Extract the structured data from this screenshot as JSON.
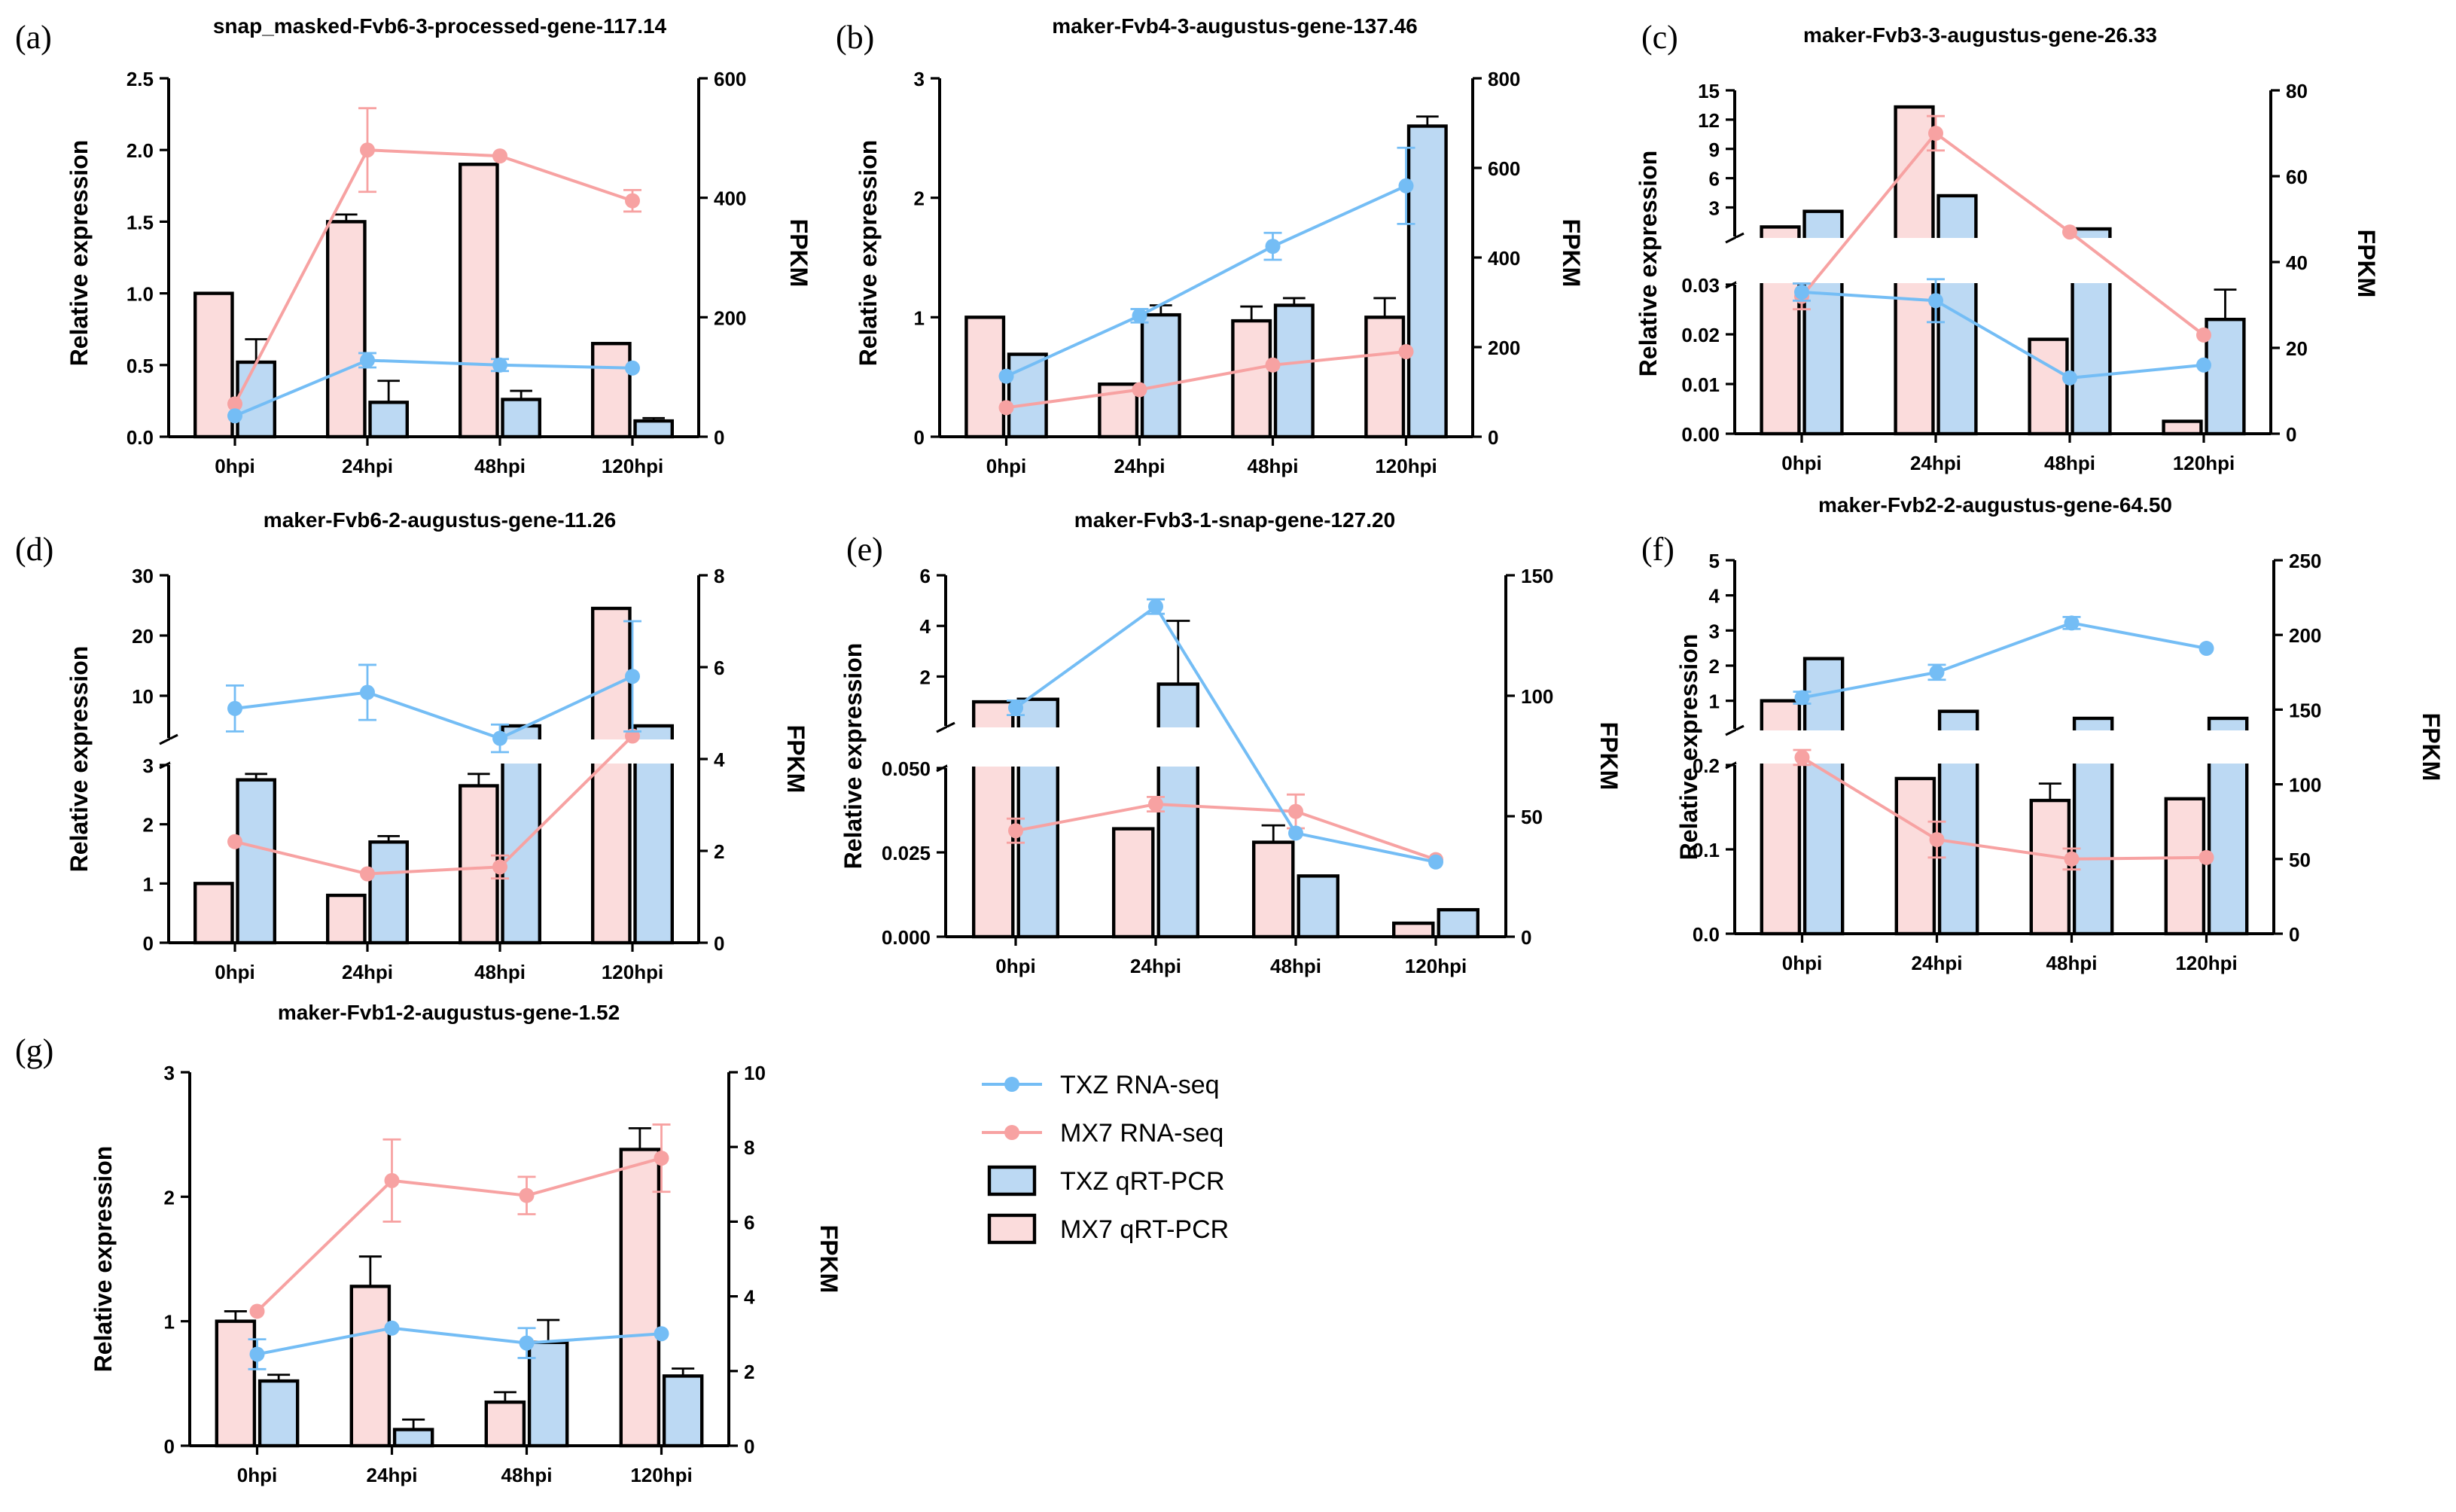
{
  "legend": [
    {
      "label": "TXZ RNA-seq",
      "kind": "line",
      "color": "#74bdf5"
    },
    {
      "label": "MX7 RNA-seq",
      "kind": "line",
      "color": "#f7a2a2"
    },
    {
      "label": "TXZ qRT-PCR",
      "kind": "bar",
      "color": "#bcd9f3"
    },
    {
      "label": "MX7 qRT-PCR",
      "kind": "bar",
      "color": "#fbdcdc"
    }
  ],
  "colors": {
    "txz_line": "#74bdf5",
    "mx7_line": "#f7a2a2",
    "txz_bar": "#bcd9f3",
    "mx7_bar": "#fbdcdc",
    "outline": "#000000"
  },
  "chart_data": [
    {
      "panel": "(a)",
      "type": "bar",
      "title": "snap_masked-Fvb6-3-processed-gene-117.14",
      "categories": [
        "0hpi",
        "24hpi",
        "48hpi",
        "120hpi"
      ],
      "ylabel": "Relative expression",
      "y2label": "FPKM",
      "ylim": [
        0,
        2.5
      ],
      "yticks": [
        "0.0",
        "0.5",
        "1.0",
        "1.5",
        "2.0",
        "2.5"
      ],
      "y2lim": [
        0,
        600
      ],
      "y2ticks": [
        "0",
        "200",
        "400",
        "600"
      ],
      "series": [
        {
          "name": "MX7 qRT-PCR",
          "values": [
            1.0,
            1.5,
            1.9,
            0.65
          ],
          "err": [
            0.0,
            0.05,
            0.0,
            0.0
          ]
        },
        {
          "name": "TXZ qRT-PCR",
          "values": [
            0.52,
            0.24,
            0.26,
            0.11
          ],
          "err": [
            0.16,
            0.15,
            0.06,
            0.02
          ]
        },
        {
          "name": "MX7 RNA-seq",
          "values": [
            55,
            480,
            470,
            395
          ],
          "err": [
            0,
            70,
            0,
            18
          ]
        },
        {
          "name": "TXZ RNA-seq",
          "values": [
            35,
            128,
            120,
            115
          ],
          "err": [
            0,
            12,
            10,
            0
          ]
        }
      ]
    },
    {
      "panel": "(b)",
      "type": "bar",
      "title": "maker-Fvb4-3-augustus-gene-137.46",
      "categories": [
        "0hpi",
        "24hpi",
        "48hpi",
        "120hpi"
      ],
      "ylabel": "Relative expression",
      "y2label": "FPKM",
      "ylim": [
        0,
        3
      ],
      "yticks": [
        "0",
        "1",
        "2",
        "3"
      ],
      "y2lim": [
        0,
        800
      ],
      "y2ticks": [
        "0",
        "200",
        "400",
        "600",
        "800"
      ],
      "series": [
        {
          "name": "MX7 qRT-PCR",
          "values": [
            1.0,
            0.44,
            0.97,
            1.0
          ],
          "err": [
            0.0,
            0.0,
            0.12,
            0.16
          ]
        },
        {
          "name": "TXZ qRT-PCR",
          "values": [
            0.69,
            1.02,
            1.1,
            2.6
          ],
          "err": [
            0.0,
            0.08,
            0.06,
            0.08
          ]
        },
        {
          "name": "MX7 RNA-seq",
          "values": [
            65,
            105,
            160,
            190
          ],
          "err": [
            0,
            0,
            0,
            0
          ]
        },
        {
          "name": "TXZ RNA-seq",
          "values": [
            135,
            270,
            425,
            560
          ],
          "err": [
            0,
            15,
            30,
            85
          ]
        }
      ]
    },
    {
      "panel": "(c)",
      "type": "bar",
      "title": "maker-Fvb3-3-augustus-gene-26.33",
      "categories": [
        "0hpi",
        "24hpi",
        "48hpi",
        "120hpi"
      ],
      "ylabel": "Relative expression",
      "y2label": "FPKM",
      "axis_break": true,
      "ylim_lower": [
        0,
        0.03
      ],
      "yticks_lower": [
        "0.00",
        "0.01",
        "0.02",
        "0.03"
      ],
      "ylim_upper": [
        0,
        15
      ],
      "yticks_upper": [
        "3",
        "6",
        "9",
        "12",
        "15"
      ],
      "y2lim": [
        0,
        80
      ],
      "y2ticks": [
        "0",
        "20",
        "40",
        "60",
        "80"
      ],
      "series": [
        {
          "name": "MX7 qRT-PCR",
          "values": [
            1.0,
            13.3,
            0.019,
            0.0025
          ],
          "err": [
            0,
            0,
            0,
            0
          ]
        },
        {
          "name": "TXZ qRT-PCR",
          "values": [
            2.6,
            4.2,
            0.8,
            0.023
          ],
          "err": [
            0,
            0,
            0,
            0.006
          ]
        },
        {
          "name": "MX7 RNA-seq",
          "values": [
            32,
            70,
            47,
            23
          ],
          "err": [
            3,
            4,
            0,
            0
          ]
        },
        {
          "name": "TXZ RNA-seq",
          "values": [
            33,
            31,
            13,
            16
          ],
          "err": [
            2,
            5,
            0,
            0
          ]
        }
      ]
    },
    {
      "panel": "(d)",
      "type": "bar",
      "title": "maker-Fvb6-2-augustus-gene-11.26",
      "categories": [
        "0hpi",
        "24hpi",
        "48hpi",
        "120hpi"
      ],
      "ylabel": "Relative expression",
      "y2label": "FPKM",
      "axis_break": true,
      "ylim_lower": [
        0,
        3
      ],
      "yticks_lower": [
        "0",
        "1",
        "2",
        "3"
      ],
      "ylim_upper": [
        3,
        30
      ],
      "yticks_upper": [
        "10",
        "20",
        "30"
      ],
      "y2lim": [
        0,
        8
      ],
      "y2ticks": [
        "0",
        "2",
        "4",
        "6",
        "8"
      ],
      "series": [
        {
          "name": "MX7 qRT-PCR",
          "values": [
            1.0,
            0.8,
            2.65,
            24.5
          ],
          "err": [
            0,
            0,
            0.2,
            0
          ]
        },
        {
          "name": "TXZ qRT-PCR",
          "values": [
            2.75,
            1.7,
            5.0,
            5.0
          ],
          "err": [
            0.1,
            0.1,
            0,
            0
          ]
        },
        {
          "name": "MX7 RNA-seq",
          "values": [
            2.2,
            1.5,
            1.65,
            4.5
          ],
          "err": [
            0,
            0,
            0.25,
            0
          ]
        },
        {
          "name": "TXZ RNA-seq",
          "values": [
            5.1,
            5.45,
            4.45,
            5.8
          ],
          "err": [
            0.5,
            0.6,
            0.3,
            1.2
          ]
        }
      ]
    },
    {
      "panel": "(e)",
      "type": "bar",
      "title": "maker-Fvb3-1-snap-gene-127.20",
      "categories": [
        "0hpi",
        "24hpi",
        "48hpi",
        "120hpi"
      ],
      "ylabel": "Relative expression",
      "y2label": "FPKM",
      "axis_break": true,
      "ylim_lower": [
        0,
        0.05
      ],
      "yticks_lower": [
        "0.000",
        "0.025",
        "0.050"
      ],
      "ylim_upper": [
        0,
        6
      ],
      "yticks_upper": [
        "2",
        "4",
        "6"
      ],
      "y2lim": [
        0,
        150
      ],
      "y2ticks": [
        "0",
        "50",
        "100",
        "150"
      ],
      "series": [
        {
          "name": "MX7 qRT-PCR",
          "values": [
            1.0,
            0.032,
            0.028,
            0.004
          ],
          "err": [
            0,
            0,
            0.005,
            0
          ]
        },
        {
          "name": "TXZ qRT-PCR",
          "values": [
            1.1,
            1.7,
            0.018,
            0.008
          ],
          "err": [
            0,
            2.5,
            0,
            0
          ]
        },
        {
          "name": "MX7 RNA-seq",
          "values": [
            44,
            55,
            52,
            32
          ],
          "err": [
            5,
            3,
            7,
            0
          ]
        },
        {
          "name": "TXZ RNA-seq",
          "values": [
            95,
            137,
            43,
            31
          ],
          "err": [
            3,
            3,
            0,
            0
          ]
        }
      ]
    },
    {
      "panel": "(f)",
      "type": "bar",
      "title": "maker-Fvb2-2-augustus-gene-64.50",
      "categories": [
        "0hpi",
        "24hpi",
        "48hpi",
        "120hpi"
      ],
      "ylabel": "Relative expression",
      "y2label": "FPKM",
      "axis_break": true,
      "ylim_lower": [
        0,
        0.2
      ],
      "yticks_lower": [
        "0.0",
        "0.1",
        "0.2"
      ],
      "ylim_upper": [
        0,
        5
      ],
      "yticks_upper": [
        "1",
        "2",
        "3",
        "4",
        "5"
      ],
      "y2lim": [
        0,
        250
      ],
      "y2ticks": [
        "0",
        "50",
        "100",
        "150",
        "200",
        "250"
      ],
      "series": [
        {
          "name": "MX7 qRT-PCR",
          "values": [
            1.0,
            0.184,
            0.158,
            0.16
          ],
          "err": [
            0,
            0,
            0.02,
            0
          ]
        },
        {
          "name": "TXZ qRT-PCR",
          "values": [
            2.2,
            0.7,
            0.5,
            0.5
          ],
          "err": [
            0,
            0,
            0,
            0
          ]
        },
        {
          "name": "MX7 RNA-seq",
          "values": [
            118,
            63,
            50,
            51
          ],
          "err": [
            5,
            12,
            7,
            0
          ]
        },
        {
          "name": "TXZ RNA-seq",
          "values": [
            158,
            175,
            208,
            191
          ],
          "err": [
            4,
            5,
            4,
            0
          ]
        }
      ]
    },
    {
      "panel": "(g)",
      "type": "bar",
      "title": "maker-Fvb1-2-augustus-gene-1.52",
      "categories": [
        "0hpi",
        "24hpi",
        "48hpi",
        "120hpi"
      ],
      "ylabel": "Relative expression",
      "y2label": "FPKM",
      "ylim": [
        0,
        3
      ],
      "yticks": [
        "0",
        "1",
        "2",
        "3"
      ],
      "y2lim": [
        0,
        10
      ],
      "y2ticks": [
        "0",
        "2",
        "4",
        "6",
        "8",
        "10"
      ],
      "series": [
        {
          "name": "MX7 qRT-PCR",
          "values": [
            1.0,
            1.28,
            0.35,
            2.38
          ],
          "err": [
            0.08,
            0.24,
            0.08,
            0.17
          ]
        },
        {
          "name": "TXZ qRT-PCR",
          "values": [
            0.52,
            0.13,
            0.83,
            0.56
          ],
          "err": [
            0.05,
            0.08,
            0.18,
            0.06
          ]
        },
        {
          "name": "MX7 RNA-seq",
          "values": [
            3.6,
            7.1,
            6.7,
            7.7
          ],
          "err": [
            0,
            1.1,
            0.5,
            0.9
          ]
        },
        {
          "name": "TXZ RNA-seq",
          "values": [
            2.45,
            3.15,
            2.75,
            3.0
          ],
          "err": [
            0.4,
            0,
            0.4,
            0
          ]
        }
      ]
    }
  ]
}
